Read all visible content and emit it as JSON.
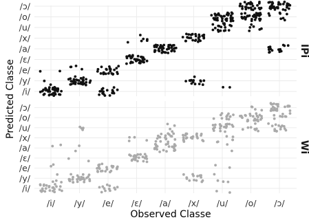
{
  "chart_data": {
    "type": "scatter",
    "xlabel": "Observed Classe",
    "ylabel": "Predicted Classe",
    "categories": [
      "/i/",
      "/y/",
      "/e/",
      "/ɛ/",
      "/a/",
      "/x/",
      "/u/",
      "/o/",
      "/ɔ/"
    ],
    "y_categories": [
      "/i/",
      "/y/",
      "/e/",
      "/ɛ/",
      "/a/",
      "/x/",
      "/u/",
      "/o/",
      "/ɔ/"
    ],
    "grid": true,
    "legend": "none",
    "panels": [
      {
        "label": "IPi",
        "color": "#111111",
        "cells": [
          {
            "observed": "/i/",
            "predicted": "/i/",
            "count": 40
          },
          {
            "observed": "/i/",
            "predicted": "/y/",
            "count": 2
          },
          {
            "observed": "/i/",
            "predicted": "/e/",
            "count": 2
          },
          {
            "observed": "/y/",
            "predicted": "/y/",
            "count": 34
          },
          {
            "observed": "/y/",
            "predicted": "/e/",
            "count": 4
          },
          {
            "observed": "/e/",
            "predicted": "/i/",
            "count": 18
          },
          {
            "observed": "/e/",
            "predicted": "/e/",
            "count": 24
          },
          {
            "observed": "/ɛ/",
            "predicted": "/ɛ/",
            "count": 34
          },
          {
            "observed": "/ɛ/",
            "predicted": "/x/",
            "count": 6
          },
          {
            "observed": "/a/",
            "predicted": "/a/",
            "count": 42
          },
          {
            "observed": "/x/",
            "predicted": "/y/",
            "count": 14
          },
          {
            "observed": "/x/",
            "predicted": "/x/",
            "count": 28
          },
          {
            "observed": "/u/",
            "predicted": "/i/",
            "count": 2
          },
          {
            "observed": "/u/",
            "predicted": "/u/",
            "count": 18
          },
          {
            "observed": "/u/",
            "predicted": "/o/",
            "count": 38
          },
          {
            "observed": "/o/",
            "predicted": "/u/",
            "count": 6
          },
          {
            "observed": "/o/",
            "predicted": "/o/",
            "count": 30
          },
          {
            "observed": "/o/",
            "predicted": "/ɔ/",
            "count": 26
          },
          {
            "observed": "/ɔ/",
            "predicted": "/a/",
            "count": 14
          },
          {
            "observed": "/ɔ/",
            "predicted": "/o/",
            "count": 8
          },
          {
            "observed": "/ɔ/",
            "predicted": "/ɔ/",
            "count": 36
          }
        ]
      },
      {
        "label": "Wi",
        "color": "#aaaaaa",
        "cells": [
          {
            "observed": "/i/",
            "predicted": "/i/",
            "count": 24
          },
          {
            "observed": "/i/",
            "predicted": "/y/",
            "count": 4
          },
          {
            "observed": "/i/",
            "predicted": "/e/",
            "count": 2
          },
          {
            "observed": "/i/",
            "predicted": "/a/",
            "count": 2
          },
          {
            "observed": "/y/",
            "predicted": "/y/",
            "count": 30
          },
          {
            "observed": "/y/",
            "predicted": "/ɛ/",
            "count": 2
          },
          {
            "observed": "/y/",
            "predicted": "/a/",
            "count": 2
          },
          {
            "observed": "/y/",
            "predicted": "/u/",
            "count": 4
          },
          {
            "observed": "/e/",
            "predicted": "/i/",
            "count": 12
          },
          {
            "observed": "/e/",
            "predicted": "/e/",
            "count": 22
          },
          {
            "observed": "/ɛ/",
            "predicted": "/ɛ/",
            "count": 26
          },
          {
            "observed": "/ɛ/",
            "predicted": "/x/",
            "count": 4
          },
          {
            "observed": "/a/",
            "predicted": "/a/",
            "count": 22
          },
          {
            "observed": "/a/",
            "predicted": "/x/",
            "count": 18
          },
          {
            "observed": "/a/",
            "predicted": "/u/",
            "count": 4
          },
          {
            "observed": "/x/",
            "predicted": "/y/",
            "count": 14
          },
          {
            "observed": "/x/",
            "predicted": "/x/",
            "count": 24
          },
          {
            "observed": "/u/",
            "predicted": "/i/",
            "count": 2
          },
          {
            "observed": "/u/",
            "predicted": "/y/",
            "count": 4
          },
          {
            "observed": "/u/",
            "predicted": "/e/",
            "count": 2
          },
          {
            "observed": "/u/",
            "predicted": "/a/",
            "count": 2
          },
          {
            "observed": "/u/",
            "predicted": "/x/",
            "count": 6
          },
          {
            "observed": "/u/",
            "predicted": "/u/",
            "count": 20
          },
          {
            "observed": "/u/",
            "predicted": "/o/",
            "count": 12
          },
          {
            "observed": "/o/",
            "predicted": "/u/",
            "count": 8
          },
          {
            "observed": "/o/",
            "predicted": "/o/",
            "count": 26
          },
          {
            "observed": "/o/",
            "predicted": "/ɔ/",
            "count": 4
          },
          {
            "observed": "/ɔ/",
            "predicted": "/u/",
            "count": 14
          },
          {
            "observed": "/ɔ/",
            "predicted": "/o/",
            "count": 8
          },
          {
            "observed": "/ɔ/",
            "predicted": "/ɔ/",
            "count": 26
          }
        ]
      }
    ]
  }
}
